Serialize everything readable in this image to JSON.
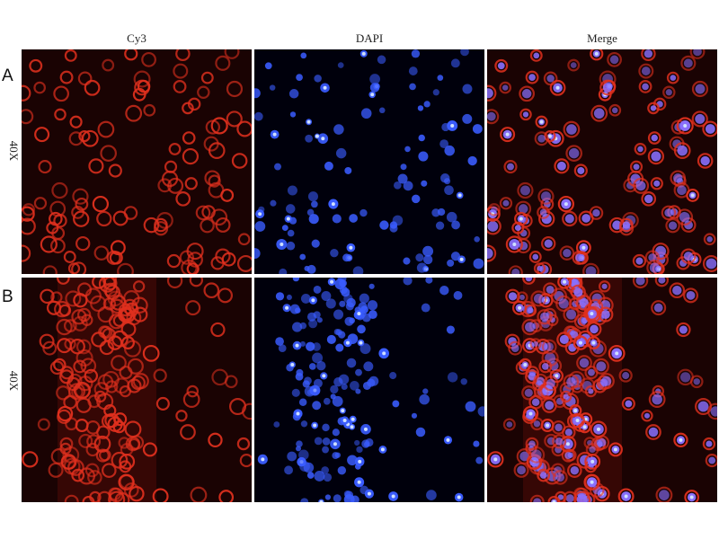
{
  "columns": [
    "Cy3",
    "DAPI",
    "Merge"
  ],
  "rows": [
    {
      "letter": "A",
      "magnification": "40X"
    },
    {
      "letter": "B",
      "magnification": "40X"
    }
  ],
  "colors": {
    "cy3": "#e0301e",
    "dapi": "#3a5cff",
    "merge_nucleus": "#8a70ff"
  }
}
